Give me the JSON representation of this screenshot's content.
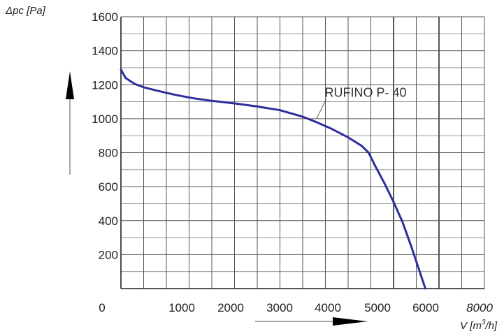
{
  "chart_data": {
    "type": "line",
    "title": "",
    "ylabel": "Δpc [Pa]",
    "xlabel_prefix": "V [m",
    "xlabel_sup": "3",
    "xlabel_suffix": "/h]",
    "xlim": [
      0,
      8000
    ],
    "ylim": [
      0,
      1600
    ],
    "x_tick_labels": [
      {
        "value": 0,
        "label": "0"
      },
      {
        "value": 1000,
        "label": "1000"
      },
      {
        "value": 2000,
        "label": "2000"
      },
      {
        "value": 3000,
        "label": "3000"
      },
      {
        "value": 4000,
        "label": "4000"
      },
      {
        "value": 5000,
        "label": "5000"
      },
      {
        "value": 6000,
        "label": "6000"
      },
      {
        "value": 8000,
        "label": "8000"
      }
    ],
    "y_tick_labels": [
      {
        "value": 200,
        "label": "200"
      },
      {
        "value": 400,
        "label": "400"
      },
      {
        "value": 600,
        "label": "600"
      },
      {
        "value": 800,
        "label": "800"
      },
      {
        "value": 1000,
        "label": "1000"
      },
      {
        "value": 1200,
        "label": "1200"
      },
      {
        "value": 1400,
        "label": "1400"
      },
      {
        "value": 1600,
        "label": "1600"
      }
    ],
    "grid": true,
    "annotation": {
      "text": "RUFINO P- 40",
      "x": 4300,
      "y": 990
    },
    "series": [
      {
        "name": "RUFINO P- 40",
        "color": "#2e2e9e",
        "x": [
          0,
          100,
          300,
          500,
          800,
          1200,
          1600,
          2000,
          2500,
          3000,
          3500,
          4000,
          4300,
          4600,
          5000,
          5300,
          5450,
          5600,
          5800,
          6000,
          6200,
          6400,
          6700
        ],
        "y": [
          1290,
          1240,
          1205,
          1185,
          1165,
          1140,
          1120,
          1105,
          1090,
          1072,
          1050,
          1012,
          980,
          945,
          890,
          840,
          800,
          720,
          620,
          510,
          390,
          240,
          0
        ]
      }
    ]
  }
}
